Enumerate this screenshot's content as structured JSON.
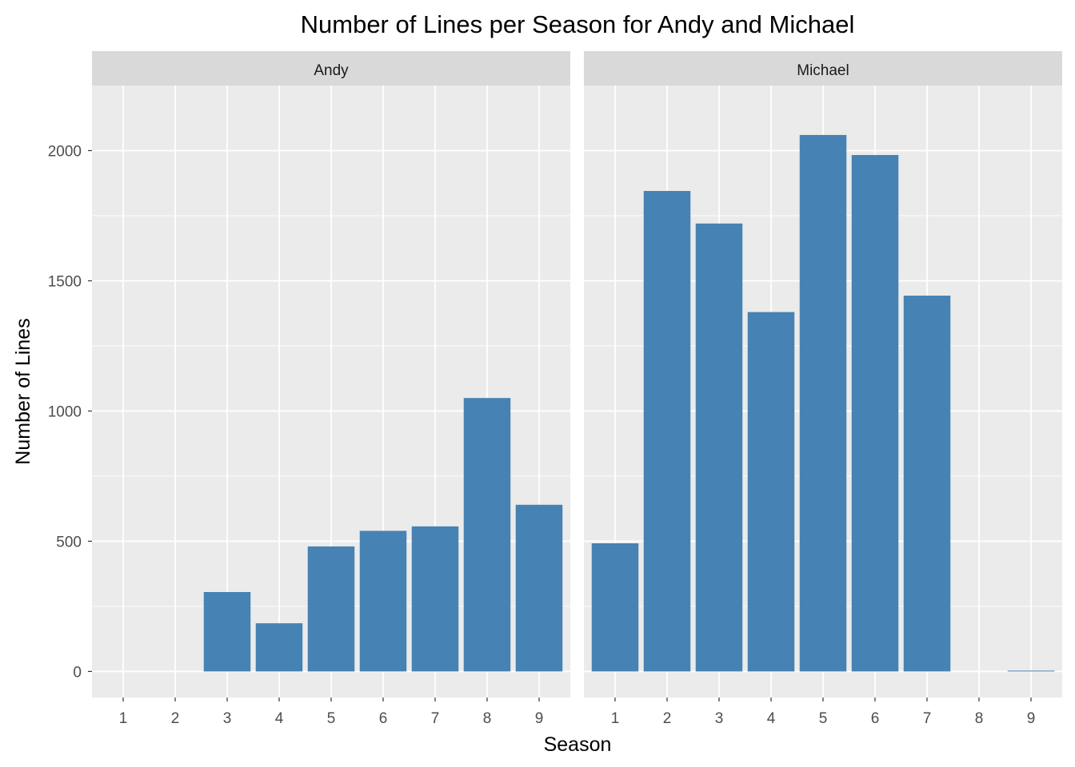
{
  "chart_data": {
    "type": "bar",
    "title": "Number of Lines per Season for Andy and Michael",
    "xlabel": "Season",
    "ylabel": "Number of Lines",
    "categories": [
      "1",
      "2",
      "3",
      "4",
      "5",
      "6",
      "7",
      "8",
      "9"
    ],
    "yticks": [
      0,
      500,
      1000,
      1500,
      2000
    ],
    "ylim": [
      -100,
      2250
    ],
    "grid": true,
    "bar_color": "#4682B4",
    "panel_background": "#EBEBEB",
    "strip_background": "#D9D9D9",
    "facets": [
      {
        "name": "Andy",
        "values": [
          0,
          0,
          305,
          185,
          480,
          540,
          557,
          1050,
          640
        ]
      },
      {
        "name": "Michael",
        "values": [
          492,
          1845,
          1720,
          1380,
          2060,
          1983,
          1443,
          0,
          3
        ]
      }
    ]
  }
}
